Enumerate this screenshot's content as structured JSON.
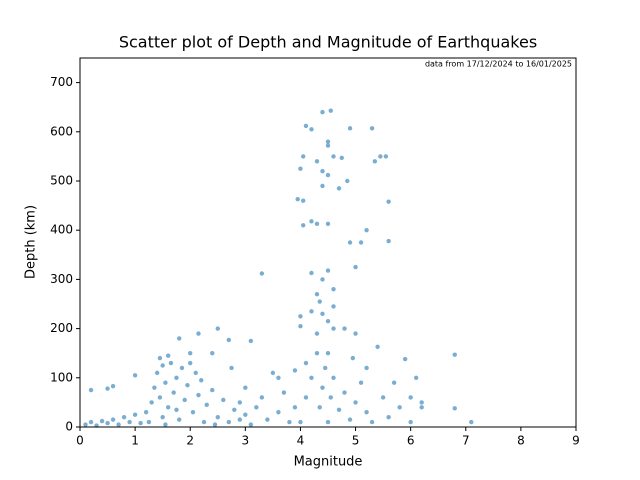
{
  "chart_data": {
    "type": "scatter",
    "title": "Scatter plot of Depth and Magnitude of Earthquakes",
    "annotation": "data from 17/12/2024 to 16/01/2025",
    "x_label": "Magnitude",
    "y_label": "Depth (km)",
    "color": "#1f77b4",
    "xlim": [
      0,
      9
    ],
    "ylim": [
      0,
      750
    ],
    "xticks": [
      0,
      1,
      2,
      3,
      4,
      5,
      6,
      7,
      8,
      9
    ],
    "yticks": [
      0,
      100,
      200,
      300,
      400,
      500,
      600,
      700
    ],
    "x": [
      4.1,
      4.2,
      4.4,
      4.55,
      4.9,
      5.3,
      4.5,
      4.5,
      4.6,
      4.3,
      4.75,
      4.4,
      4.5,
      4.85,
      4.4,
      4.7,
      5.35,
      5.45,
      5.55,
      4.0,
      4.05,
      3.95,
      4.05,
      5.6,
      4.2,
      4.3,
      4.5,
      4.05,
      5.2,
      4.9,
      5.1,
      5.6,
      5.0,
      3.3,
      4.2,
      4.5,
      4.4,
      4.6,
      4.3,
      4.35,
      4.6,
      4.0,
      4.2,
      4.4,
      4.5,
      4.6,
      4.8,
      4.0,
      4.3,
      5.0,
      5.4,
      2.5,
      2.15,
      1.8,
      2.7,
      3.1,
      5.9,
      6.8,
      6.1,
      6.2,
      6.2,
      6.8,
      7.1,
      0.2,
      0.5,
      0.6,
      1.0,
      1.45,
      1.6,
      2.0,
      2.4,
      2.75,
      3.5,
      3.9,
      4.1,
      4.5,
      4.95,
      5.2,
      5.7,
      6.0,
      3.0,
      3.3,
      2.9,
      0.1,
      0.2,
      0.3,
      0.4,
      0.5,
      0.6,
      0.7,
      0.8,
      0.9,
      1.0,
      1.1,
      1.2,
      1.3,
      1.35,
      1.4,
      1.45,
      1.5,
      1.5,
      1.55,
      1.6,
      1.65,
      1.7,
      1.75,
      1.8,
      1.85,
      1.9,
      1.95,
      2.0,
      2.05,
      2.1,
      2.15,
      2.2,
      2.3,
      2.4,
      2.5,
      2.6,
      2.7,
      2.8,
      2.9,
      3.0,
      3.1,
      3.2,
      3.4,
      3.6,
      3.8,
      1.25,
      1.55,
      1.75,
      2.25,
      2.45,
      4.0,
      4.1,
      4.2,
      4.3,
      4.35,
      4.4,
      4.45,
      4.5,
      4.55,
      4.6,
      4.7,
      4.8,
      4.9,
      5.0,
      5.1,
      5.2,
      5.3,
      5.5,
      5.6,
      5.8,
      6.0,
      3.9,
      3.7,
      3.6
    ],
    "y": [
      612,
      605,
      640,
      643,
      607,
      607,
      580,
      572,
      550,
      540,
      547,
      520,
      512,
      500,
      490,
      485,
      540,
      550,
      550,
      525,
      550,
      463,
      460,
      458,
      418,
      413,
      413,
      410,
      400,
      375,
      375,
      378,
      325,
      312,
      313,
      318,
      300,
      280,
      270,
      255,
      245,
      225,
      235,
      230,
      215,
      200,
      200,
      205,
      190,
      190,
      163,
      200,
      190,
      180,
      177,
      175,
      138,
      147,
      100,
      50,
      40,
      38,
      10,
      75,
      78,
      83,
      105,
      140,
      145,
      150,
      150,
      120,
      110,
      115,
      130,
      150,
      140,
      120,
      90,
      60,
      80,
      60,
      50,
      5,
      10,
      3,
      12,
      8,
      15,
      5,
      20,
      10,
      25,
      8,
      30,
      50,
      80,
      110,
      60,
      125,
      20,
      90,
      40,
      130,
      70,
      100,
      15,
      120,
      55,
      85,
      130,
      30,
      110,
      65,
      95,
      45,
      75,
      20,
      55,
      10,
      35,
      15,
      25,
      5,
      40,
      15,
      30,
      10,
      10,
      5,
      35,
      10,
      5,
      10,
      60,
      100,
      150,
      40,
      80,
      120,
      10,
      60,
      100,
      35,
      70,
      15,
      50,
      90,
      30,
      10,
      60,
      20,
      40,
      10,
      40,
      70,
      100
    ]
  }
}
